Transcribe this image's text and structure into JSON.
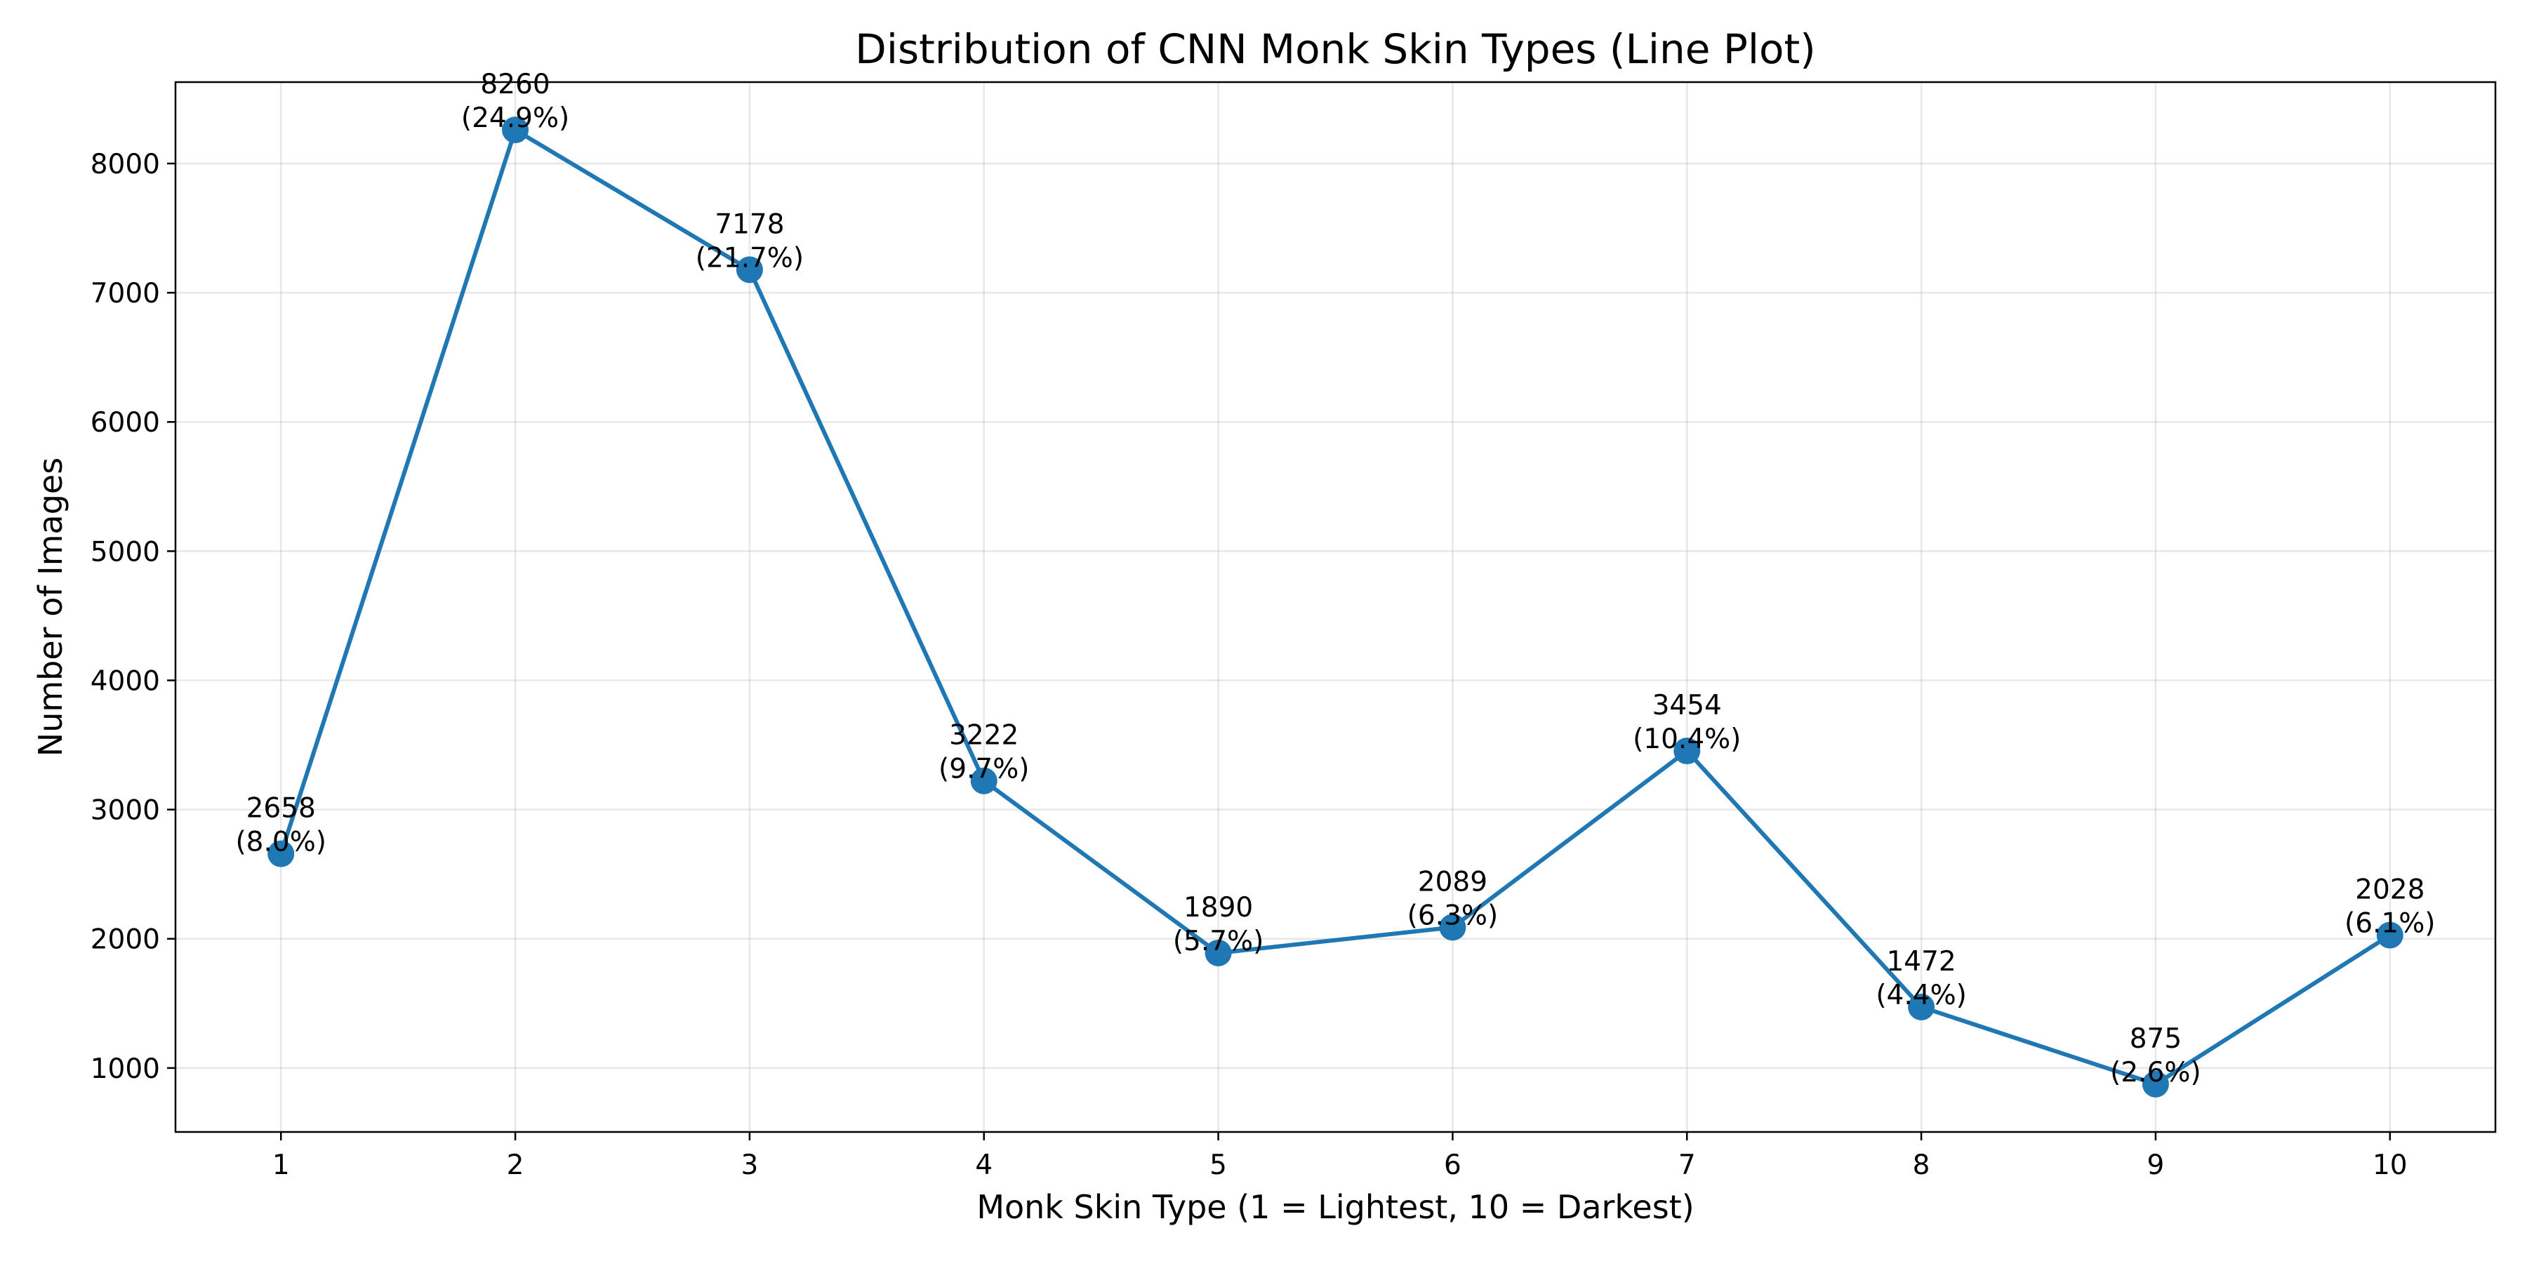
{
  "chart_data": {
    "type": "line",
    "title": "Distribution of CNN Monk Skin Types (Line Plot)",
    "xlabel": "Monk Skin Type (1 = Lightest, 10 = Darkest)",
    "ylabel": "Number of Images",
    "x": [
      1,
      2,
      3,
      4,
      5,
      6,
      7,
      8,
      9,
      10
    ],
    "series": [
      {
        "values": [
          2658,
          8260,
          7178,
          3222,
          1890,
          2089,
          3454,
          1472,
          875,
          2028
        ],
        "color": "#1f77b4",
        "marker": "circle"
      }
    ],
    "data_labels": [
      [
        "2658",
        "(8.0%)"
      ],
      [
        "8260",
        "(24.9%)"
      ],
      [
        "7178",
        "(21.7%)"
      ],
      [
        "3222",
        "(9.7%)"
      ],
      [
        "1890",
        "(5.7%)"
      ],
      [
        "2089",
        "(6.3%)"
      ],
      [
        "3454",
        "(10.4%)"
      ],
      [
        "1472",
        "(4.4%)"
      ],
      [
        "875",
        "(2.6%)"
      ],
      [
        "2028",
        "(6.1%)"
      ]
    ],
    "xticks": [
      1,
      2,
      3,
      4,
      5,
      6,
      7,
      8,
      9,
      10
    ],
    "yticks": [
      1000,
      2000,
      3000,
      4000,
      5000,
      6000,
      7000,
      8000
    ],
    "xlim": [
      0.55,
      10.45
    ],
    "ylim": [
      505,
      8630
    ],
    "grid": true,
    "legend": "none"
  }
}
